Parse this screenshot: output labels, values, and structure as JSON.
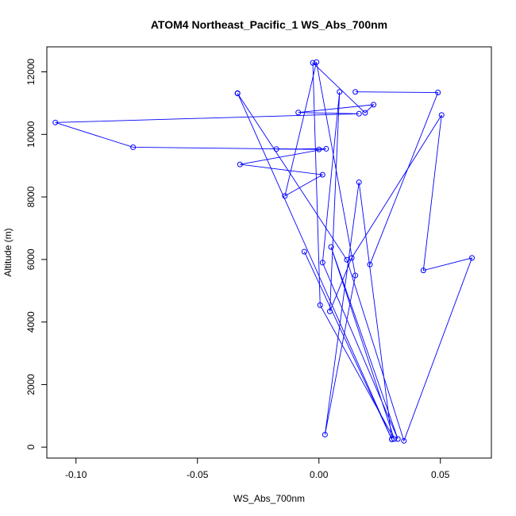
{
  "chart_data": {
    "type": "line",
    "title": "ATOM4 Northeast_Pacific_1 WS_Abs_700nm",
    "xlabel": "WS_Abs_700nm",
    "ylabel": "Altitude (m)",
    "xlim": [
      -0.112,
      0.071
    ],
    "ylim": [
      -350,
      12800
    ],
    "xticks": [
      -0.1,
      -0.05,
      0.0,
      0.05
    ],
    "xtick_labels": [
      "-0.10",
      "-0.05",
      "0.00",
      "0.05"
    ],
    "yticks": [
      0,
      2000,
      4000,
      6000,
      8000,
      10000,
      12000
    ],
    "ytick_labels": [
      "0",
      "2000",
      "4000",
      "6000",
      "8000",
      "10000",
      "12000"
    ],
    "grid": false,
    "legend": "none",
    "color": "#0000ff",
    "series": [
      {
        "points": [
          [
            -0.0335,
            11320
          ],
          [
            0.03,
            250
          ],
          [
            0.0165,
            8470
          ],
          [
            0.0025,
            400
          ],
          [
            0.015,
            5490
          ],
          [
            -0.001,
            12310
          ],
          [
            -0.014,
            8030
          ],
          [
            0.0015,
            8710
          ],
          [
            -0.0325,
            9040
          ],
          [
            0.003,
            9540
          ],
          [
            -0.0175,
            9530
          ],
          [
            0.0,
            9520
          ],
          [
            -0.0765,
            9590
          ],
          [
            -0.1085,
            10380
          ],
          [
            0.0165,
            10660
          ],
          [
            -0.0085,
            10700
          ],
          [
            0.0225,
            10950
          ],
          [
            0.019,
            10690
          ],
          [
            -0.0025,
            12290
          ],
          [
            0.0005,
            4540
          ],
          [
            0.031,
            260
          ],
          [
            0.005,
            6400
          ],
          [
            0.0325,
            260
          ],
          [
            0.0015,
            5900
          ],
          [
            0.0085,
            11360
          ],
          [
            0.0045,
            4340
          ],
          [
            0.0135,
            6050
          ],
          [
            0.0505,
            10620
          ],
          [
            0.043,
            5650
          ],
          [
            0.063,
            6050
          ],
          [
            0.035,
            200
          ],
          [
            0.0115,
            5990
          ],
          [
            -0.0335,
            11310
          ]
        ]
      },
      {
        "points": [
          [
            0.021,
            5840
          ],
          [
            0.049,
            11340
          ],
          [
            0.015,
            11360
          ]
        ]
      },
      {
        "points": [
          [
            -0.006,
            6250
          ],
          [
            0.03,
            250
          ]
        ]
      }
    ]
  }
}
